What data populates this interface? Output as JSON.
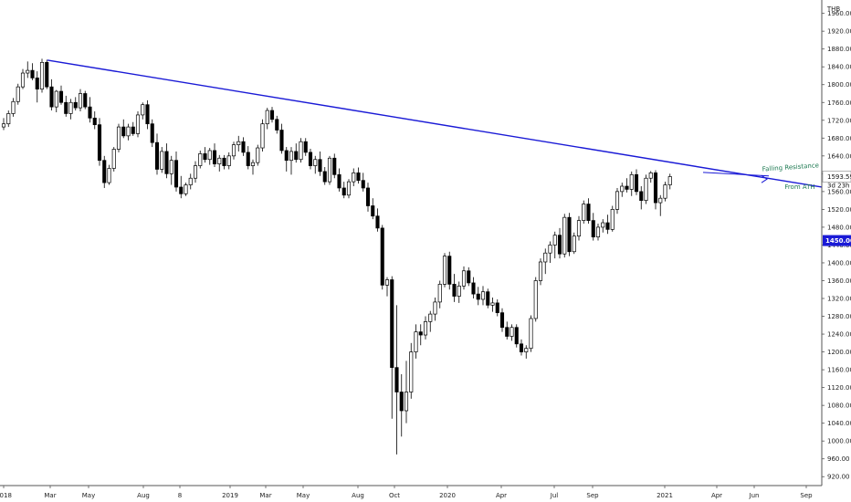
{
  "chart_data": {
    "type": "candlestick",
    "interval": "1W",
    "currency": "THB",
    "ylim": [
      900,
      1990
    ],
    "y_ticks": [
      920,
      960,
      1000,
      1040,
      1080,
      1120,
      1160,
      1200,
      1240,
      1280,
      1320,
      1360,
      1400,
      1440,
      1480,
      1520,
      1560,
      1600,
      1640,
      1680,
      1720,
      1760,
      1800,
      1840,
      1880,
      1920,
      1960
    ],
    "x_ticks": [
      "2018",
      "Mar",
      "May",
      "Aug",
      "8",
      "2019",
      "Mar",
      "May",
      "Aug",
      "Oct",
      "2020",
      "Apr",
      "Jul",
      "Sep",
      "2021",
      "Apr",
      "Jun",
      "Sep"
    ],
    "last_price": "1593.59",
    "countdown": "3d 23h",
    "crosshair_price": "1450.00",
    "annotations": [
      "Falling Resistance",
      "From ATH"
    ],
    "resistance_line": {
      "start_price": 1855,
      "end_price": 1570,
      "color": "#1a1ad6"
    },
    "candles": [
      [
        1705,
        1725,
        1698,
        1712
      ],
      [
        1712,
        1742,
        1705,
        1735
      ],
      [
        1735,
        1770,
        1728,
        1762
      ],
      [
        1762,
        1802,
        1755,
        1795
      ],
      [
        1795,
        1835,
        1790,
        1826
      ],
      [
        1826,
        1852,
        1815,
        1832
      ],
      [
        1832,
        1848,
        1810,
        1815
      ],
      [
        1815,
        1830,
        1760,
        1790
      ],
      [
        1790,
        1858,
        1782,
        1850
      ],
      [
        1850,
        1856,
        1790,
        1795
      ],
      [
        1795,
        1812,
        1742,
        1750
      ],
      [
        1750,
        1788,
        1738,
        1785
      ],
      [
        1785,
        1798,
        1755,
        1760
      ],
      [
        1760,
        1775,
        1728,
        1735
      ],
      [
        1735,
        1768,
        1722,
        1760
      ],
      [
        1760,
        1772,
        1742,
        1748
      ],
      [
        1748,
        1790,
        1740,
        1780
      ],
      [
        1780,
        1786,
        1745,
        1750
      ],
      [
        1750,
        1772,
        1715,
        1725
      ],
      [
        1725,
        1740,
        1700,
        1710
      ],
      [
        1710,
        1725,
        1618,
        1630
      ],
      [
        1630,
        1640,
        1568,
        1580
      ],
      [
        1580,
        1620,
        1575,
        1612
      ],
      [
        1612,
        1660,
        1605,
        1655
      ],
      [
        1655,
        1712,
        1648,
        1705
      ],
      [
        1705,
        1722,
        1680,
        1685
      ],
      [
        1685,
        1712,
        1675,
        1705
      ],
      [
        1705,
        1716,
        1685,
        1690
      ],
      [
        1690,
        1740,
        1682,
        1732
      ],
      [
        1732,
        1760,
        1722,
        1755
      ],
      [
        1755,
        1765,
        1700,
        1712
      ],
      [
        1712,
        1722,
        1660,
        1670
      ],
      [
        1670,
        1690,
        1598,
        1610
      ],
      [
        1610,
        1660,
        1602,
        1650
      ],
      [
        1650,
        1668,
        1590,
        1600
      ],
      [
        1600,
        1640,
        1575,
        1630
      ],
      [
        1630,
        1650,
        1560,
        1570
      ],
      [
        1570,
        1595,
        1545,
        1555
      ],
      [
        1555,
        1580,
        1550,
        1575
      ],
      [
        1575,
        1600,
        1565,
        1590
      ],
      [
        1590,
        1628,
        1580,
        1618
      ],
      [
        1618,
        1652,
        1612,
        1645
      ],
      [
        1645,
        1660,
        1625,
        1632
      ],
      [
        1632,
        1658,
        1620,
        1652
      ],
      [
        1652,
        1668,
        1615,
        1622
      ],
      [
        1622,
        1642,
        1605,
        1635
      ],
      [
        1635,
        1642,
        1610,
        1618
      ],
      [
        1618,
        1648,
        1610,
        1640
      ],
      [
        1640,
        1672,
        1632,
        1665
      ],
      [
        1665,
        1685,
        1650,
        1672
      ],
      [
        1672,
        1682,
        1640,
        1648
      ],
      [
        1648,
        1662,
        1610,
        1618
      ],
      [
        1618,
        1632,
        1598,
        1625
      ],
      [
        1625,
        1665,
        1618,
        1658
      ],
      [
        1658,
        1722,
        1650,
        1712
      ],
      [
        1712,
        1748,
        1700,
        1742
      ],
      [
        1742,
        1750,
        1715,
        1722
      ],
      [
        1722,
        1730,
        1690,
        1698
      ],
      [
        1698,
        1712,
        1645,
        1652
      ],
      [
        1652,
        1660,
        1605,
        1630
      ],
      [
        1630,
        1660,
        1598,
        1650
      ],
      [
        1650,
        1668,
        1625,
        1632
      ],
      [
        1632,
        1680,
        1625,
        1672
      ],
      [
        1672,
        1680,
        1640,
        1648
      ],
      [
        1648,
        1656,
        1610,
        1618
      ],
      [
        1618,
        1640,
        1600,
        1632
      ],
      [
        1632,
        1650,
        1595,
        1605
      ],
      [
        1605,
        1615,
        1575,
        1582
      ],
      [
        1582,
        1640,
        1575,
        1635
      ],
      [
        1635,
        1645,
        1590,
        1598
      ],
      [
        1598,
        1612,
        1560,
        1568
      ],
      [
        1568,
        1582,
        1545,
        1552
      ],
      [
        1552,
        1588,
        1545,
        1582
      ],
      [
        1582,
        1612,
        1572,
        1602
      ],
      [
        1602,
        1614,
        1578,
        1585
      ],
      [
        1585,
        1602,
        1560,
        1568
      ],
      [
        1568,
        1580,
        1515,
        1528
      ],
      [
        1528,
        1545,
        1498,
        1505
      ],
      [
        1505,
        1522,
        1470,
        1478
      ],
      [
        1478,
        1485,
        1340,
        1350
      ],
      [
        1350,
        1368,
        1325,
        1362
      ],
      [
        1362,
        1370,
        1050,
        1165
      ],
      [
        1165,
        1305,
        970,
        1110
      ],
      [
        1110,
        1150,
        1010,
        1068
      ],
      [
        1068,
        1180,
        1040,
        1110
      ],
      [
        1110,
        1220,
        1095,
        1200
      ],
      [
        1200,
        1262,
        1185,
        1245
      ],
      [
        1245,
        1262,
        1215,
        1238
      ],
      [
        1238,
        1280,
        1228,
        1268
      ],
      [
        1268,
        1292,
        1245,
        1285
      ],
      [
        1285,
        1322,
        1270,
        1312
      ],
      [
        1312,
        1360,
        1298,
        1352
      ],
      [
        1352,
        1422,
        1345,
        1415
      ],
      [
        1415,
        1425,
        1340,
        1352
      ],
      [
        1352,
        1375,
        1312,
        1325
      ],
      [
        1325,
        1358,
        1310,
        1348
      ],
      [
        1348,
        1392,
        1340,
        1382
      ],
      [
        1382,
        1390,
        1348,
        1355
      ],
      [
        1355,
        1368,
        1320,
        1330
      ],
      [
        1330,
        1346,
        1305,
        1318
      ],
      [
        1318,
        1348,
        1305,
        1335
      ],
      [
        1335,
        1342,
        1298,
        1305
      ],
      [
        1305,
        1322,
        1290,
        1310
      ],
      [
        1310,
        1318,
        1280,
        1288
      ],
      [
        1288,
        1298,
        1245,
        1255
      ],
      [
        1255,
        1268,
        1228,
        1235
      ],
      [
        1235,
        1262,
        1225,
        1255
      ],
      [
        1255,
        1262,
        1210,
        1218
      ],
      [
        1218,
        1228,
        1192,
        1200
      ],
      [
        1200,
        1215,
        1185,
        1208
      ],
      [
        1208,
        1282,
        1200,
        1275
      ],
      [
        1275,
        1368,
        1268,
        1360
      ],
      [
        1360,
        1410,
        1350,
        1402
      ],
      [
        1402,
        1432,
        1375,
        1422
      ],
      [
        1422,
        1448,
        1400,
        1440
      ],
      [
        1440,
        1470,
        1410,
        1462
      ],
      [
        1462,
        1478,
        1410,
        1420
      ],
      [
        1420,
        1510,
        1412,
        1502
      ],
      [
        1502,
        1512,
        1415,
        1425
      ],
      [
        1425,
        1468,
        1420,
        1460
      ],
      [
        1460,
        1505,
        1450,
        1495
      ],
      [
        1495,
        1540,
        1488,
        1532
      ],
      [
        1532,
        1545,
        1488,
        1495
      ],
      [
        1495,
        1512,
        1450,
        1458
      ],
      [
        1458,
        1488,
        1450,
        1480
      ],
      [
        1480,
        1498,
        1468,
        1490
      ],
      [
        1490,
        1508,
        1465,
        1475
      ],
      [
        1475,
        1528,
        1470,
        1520
      ],
      [
        1520,
        1568,
        1510,
        1560
      ],
      [
        1560,
        1580,
        1548,
        1572
      ],
      [
        1572,
        1590,
        1558,
        1565
      ],
      [
        1565,
        1605,
        1550,
        1598
      ],
      [
        1598,
        1610,
        1552,
        1560
      ],
      [
        1560,
        1572,
        1520,
        1540
      ],
      [
        1540,
        1598,
        1532,
        1590
      ],
      [
        1590,
        1606,
        1580,
        1602
      ],
      [
        1602,
        1608,
        1520,
        1535
      ],
      [
        1535,
        1552,
        1505,
        1545
      ],
      [
        1545,
        1582,
        1538,
        1575
      ],
      [
        1575,
        1600,
        1565,
        1593.59
      ]
    ]
  }
}
